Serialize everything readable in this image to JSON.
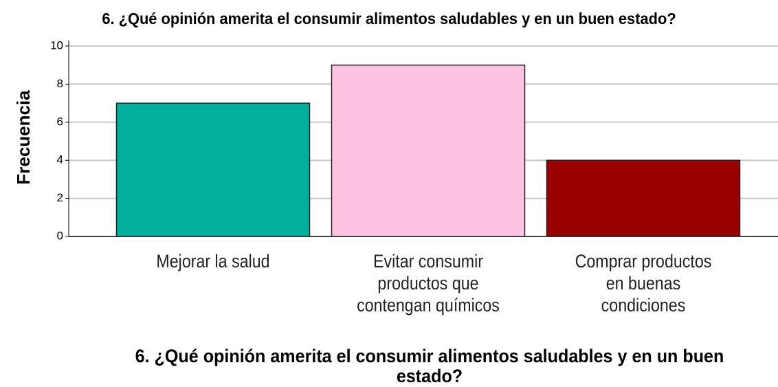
{
  "chart_data": {
    "type": "bar",
    "title": "6. ¿Qué opinión amerita el consumir alimentos saludables y en un buen estado?",
    "x_label": "6. ¿Qué opinión amerita el consumir alimentos saludables y en un buen estado?",
    "y_label": "Frecuencia",
    "categories": [
      "Mejorar la salud",
      "Evitar consumir productos que contengan químicos",
      "Comprar productos en buenas condiciones"
    ],
    "values": [
      7,
      9,
      4
    ],
    "colors": [
      "#00b09c",
      "#ffc2e1",
      "#990000"
    ],
    "ylim": [
      0,
      10
    ],
    "yticks": [
      0,
      2,
      4,
      6,
      8,
      10
    ],
    "grid": true
  }
}
